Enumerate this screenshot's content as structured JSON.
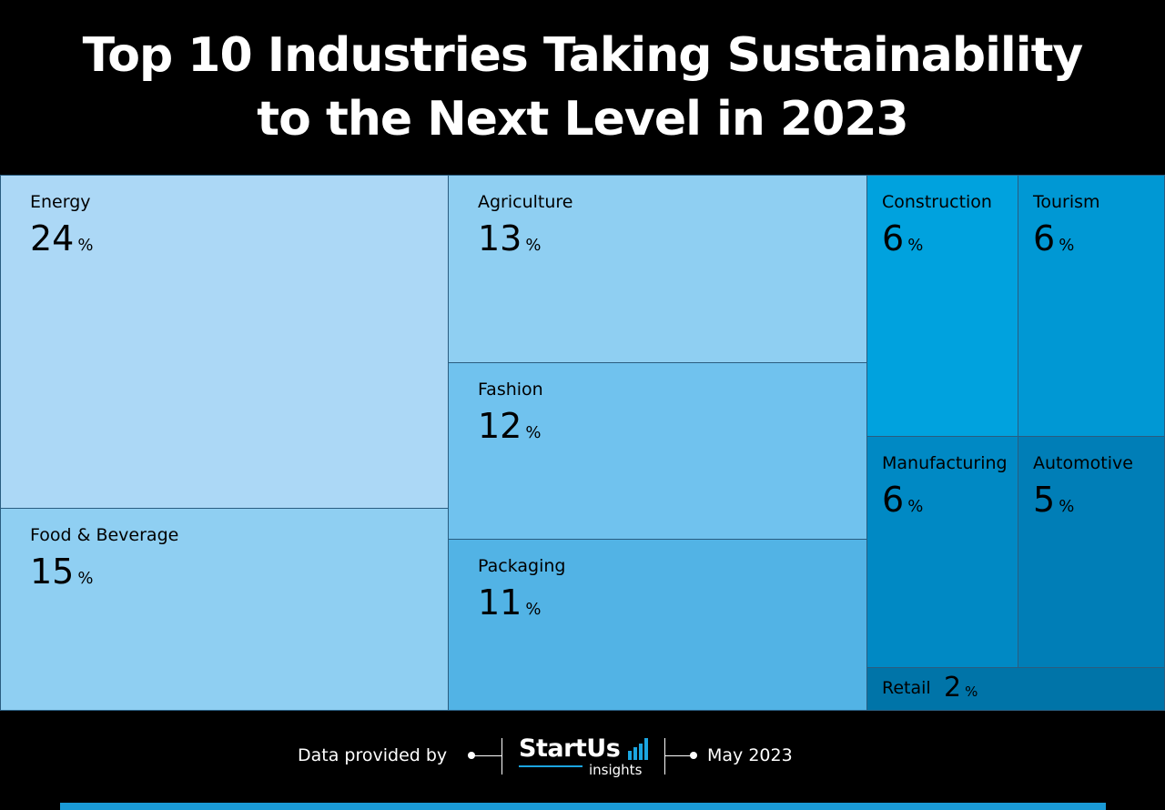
{
  "chart_data": {
    "type": "treemap",
    "title_line1": "Top 10 Industries Taking Sustainability",
    "title_line2": "to the Next Level in 2023",
    "unit": "%",
    "items": [
      {
        "name": "Energy",
        "value": 24,
        "color": "#acd8f6"
      },
      {
        "name": "Food & Beverage",
        "value": 15,
        "color": "#8fcff2"
      },
      {
        "name": "Agriculture",
        "value": 13,
        "color": "#8fcff2"
      },
      {
        "name": "Fashion",
        "value": 12,
        "color": "#70c2ee"
      },
      {
        "name": "Packaging",
        "value": 11,
        "color": "#52b3e5"
      },
      {
        "name": "Construction",
        "value": 6,
        "color": "#00a2de"
      },
      {
        "name": "Tourism",
        "value": 6,
        "color": "#0098d4"
      },
      {
        "name": "Manufacturing",
        "value": 6,
        "color": "#0089c4"
      },
      {
        "name": "Automotive",
        "value": 5,
        "color": "#007eb7"
      },
      {
        "name": "Retail",
        "value": 2,
        "color": "#0074a8"
      }
    ]
  },
  "footer": {
    "provided_label": "Data provided by",
    "brand": "StartUs",
    "brand_sub": "insights",
    "date": "May 2023"
  },
  "colors": {
    "background": "#000000",
    "accent": "#1a9ad6"
  }
}
